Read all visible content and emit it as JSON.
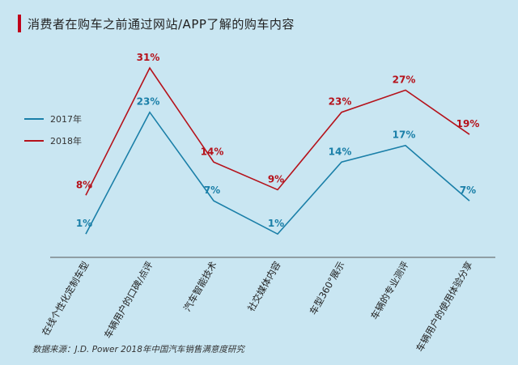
{
  "title": "消费者在购车之前通过网站/APP了解的购车内容",
  "source_note": "数据来源：J.D. Power 2018年中国汽车销售满意度研究",
  "colors": {
    "series_2017": "#1a7fa8",
    "series_2018": "#b5121b",
    "accent": "#c0001a",
    "axis": "#555555"
  },
  "chart_data": {
    "type": "line",
    "title": "消费者在购车之前通过网站/APP了解的购车内容",
    "categories": [
      "在线个性化定制车型",
      "车辆用户的口碑/点评",
      "汽车智能技术",
      "社交媒体内容",
      "车型360°展示",
      "车辆的专业测评",
      "车辆用户的使用体验分享"
    ],
    "ylim": [
      0,
      35
    ],
    "series": [
      {
        "name": "2017年",
        "values": [
          1,
          23,
          7,
          1,
          14,
          17,
          7
        ],
        "labels": [
          "1%",
          "23%",
          "7%",
          "1%",
          "14%",
          "17%",
          "7%"
        ]
      },
      {
        "name": "2018年",
        "values": [
          8,
          31,
          14,
          9,
          23,
          27,
          19
        ],
        "labels": [
          "8%",
          "31%",
          "14%",
          "9%",
          "23%",
          "27%",
          "19%"
        ]
      }
    ],
    "legend": "left",
    "grid": false,
    "xlabel": "",
    "ylabel": ""
  }
}
